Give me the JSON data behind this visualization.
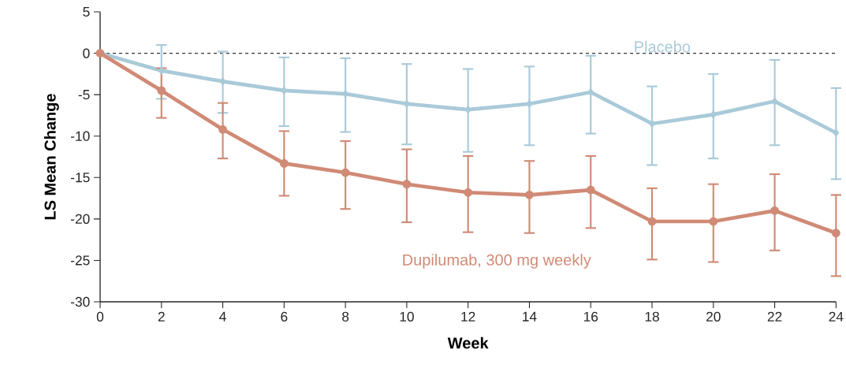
{
  "chart_data": {
    "type": "line",
    "xlabel": "Week",
    "ylabel": "LS Mean Change",
    "x": [
      0,
      2,
      4,
      6,
      8,
      10,
      12,
      14,
      16,
      18,
      20,
      22,
      24
    ],
    "series": [
      {
        "name": "Placebo",
        "color": "#a9cad8",
        "marker": "diamond",
        "values": [
          0,
          -2.1,
          -3.4,
          -4.5,
          -4.9,
          -6.1,
          -6.8,
          -6.1,
          -4.7,
          -8.5,
          -7.4,
          -5.8,
          -9.6
        ],
        "errors": [
          null,
          [
            -5.5,
            1.0
          ],
          [
            -7.2,
            0.2
          ],
          [
            -8.8,
            -0.5
          ],
          [
            -9.5,
            -0.6
          ],
          [
            -11.0,
            -1.3
          ],
          [
            -11.9,
            -1.9
          ],
          [
            -11.1,
            -1.6
          ],
          [
            -9.7,
            -0.3
          ],
          [
            -13.5,
            -4.0
          ],
          [
            -12.7,
            -2.5
          ],
          [
            -11.1,
            -0.8
          ],
          [
            -15.2,
            -4.2
          ]
        ]
      },
      {
        "name": "Dupilumab, 300 mg weekly",
        "color": "#d08a75",
        "marker": "circle",
        "values": [
          0,
          -4.5,
          -9.2,
          -13.3,
          -14.4,
          -15.8,
          -16.8,
          -17.1,
          -16.5,
          -20.3,
          -20.3,
          -19.0,
          -21.7
        ],
        "errors": [
          null,
          [
            -7.8,
            -1.8
          ],
          [
            -12.7,
            -6.0
          ],
          [
            -17.2,
            -9.4
          ],
          [
            -18.8,
            -10.6
          ],
          [
            -20.4,
            -11.6
          ],
          [
            -21.6,
            -12.4
          ],
          [
            -21.7,
            -13.0
          ],
          [
            -21.1,
            -12.4
          ],
          [
            -24.9,
            -16.3
          ],
          [
            -25.2,
            -15.8
          ],
          [
            -23.8,
            -14.6
          ],
          [
            -26.9,
            -17.1
          ]
        ]
      }
    ],
    "xlim": [
      0,
      24
    ],
    "ylim": [
      -30,
      5
    ],
    "xticks": [
      0,
      2,
      4,
      6,
      8,
      10,
      12,
      14,
      16,
      18,
      20,
      22,
      24
    ],
    "yticks": [
      5,
      0,
      -5,
      -10,
      -15,
      -20,
      -25,
      -30
    ],
    "ref_lines": [
      {
        "axis": "y",
        "value": 0,
        "line_style": "dashed",
        "color": "#333333"
      }
    ]
  }
}
